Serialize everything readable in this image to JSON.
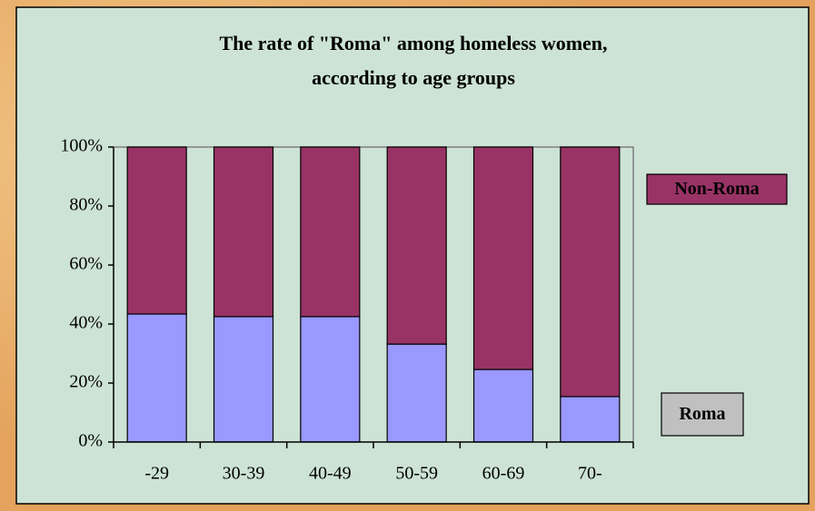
{
  "chart_data": {
    "type": "stacked_bar",
    "title": "The rate of \"Roma\" among homeless women, according to age groups",
    "categories": [
      "-29",
      "30-39",
      "40-49",
      "50-59",
      "60-69",
      "70-"
    ],
    "series": [
      {
        "name": "Roma",
        "color": "#9999ff",
        "values": [
          43.4,
          42.5,
          42.5,
          33.2,
          24.6,
          15.4
        ]
      },
      {
        "name": "Non-Roma",
        "color": "#993366",
        "values": [
          56.6,
          57.5,
          57.5,
          66.8,
          75.4,
          84.6
        ]
      }
    ],
    "ylim": [
      0,
      100
    ],
    "yticks": [
      {
        "value": 0,
        "label": "0%"
      },
      {
        "value": 20,
        "label": "20%"
      },
      {
        "value": 40,
        "label": "40%"
      },
      {
        "value": 60,
        "label": "60%"
      },
      {
        "value": 80,
        "label": "80%"
      },
      {
        "value": 100,
        "label": "100%"
      }
    ],
    "grid": false
  }
}
